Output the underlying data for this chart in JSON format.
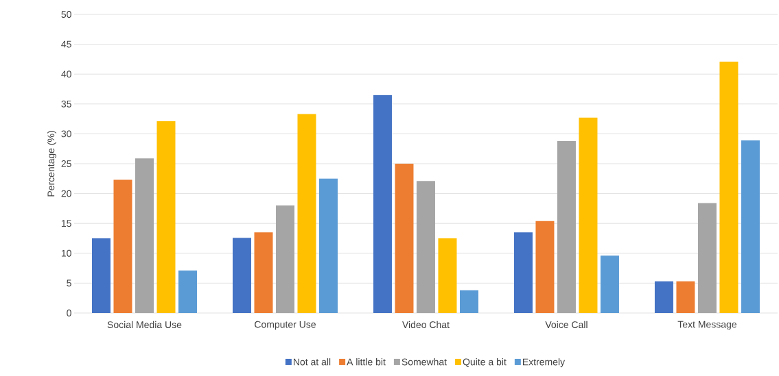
{
  "chart_data": {
    "type": "bar",
    "ylabel": "Percentage (%)",
    "categories": [
      "Social Media Use",
      "Computer Use",
      "Video Chat",
      "Voice Call",
      "Text Message"
    ],
    "series": [
      {
        "name": "Not at all",
        "color": "#4472c4",
        "values": [
          12.5,
          12.6,
          36.5,
          13.5,
          5.3
        ]
      },
      {
        "name": "A little bit",
        "color": "#ed7d31",
        "values": [
          22.3,
          13.5,
          25.0,
          15.4,
          5.3
        ]
      },
      {
        "name": "Somewhat",
        "color": "#a5a5a5",
        "values": [
          25.9,
          18.0,
          22.1,
          28.8,
          18.4
        ]
      },
      {
        "name": "Quite a bit",
        "color": "#ffc000",
        "values": [
          32.1,
          33.3,
          12.5,
          32.7,
          42.1
        ]
      },
      {
        "name": "Extremely",
        "color": "#5b9bd5",
        "values": [
          7.1,
          22.5,
          3.8,
          9.6,
          28.9
        ]
      }
    ],
    "ylim": [
      0,
      50
    ],
    "yticks": [
      0,
      5,
      10,
      15,
      20,
      25,
      30,
      35,
      40,
      45,
      50
    ],
    "grid": "y",
    "legend": "bottom"
  }
}
